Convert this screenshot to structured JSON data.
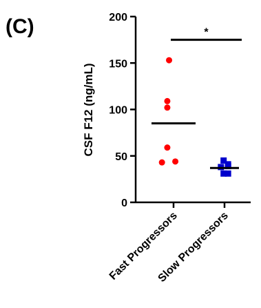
{
  "chart_data": {
    "type": "scatter",
    "panel_label": "(C)",
    "ylabel": "CSF F12 (ng/mL)",
    "ylim": [
      0,
      200
    ],
    "yticks": [
      0,
      50,
      100,
      150,
      200
    ],
    "categories": [
      "Fast Progressors",
      "Slow Progressors"
    ],
    "series": [
      {
        "category": "Fast Progressors",
        "marker": "circle",
        "color": "#ff0000",
        "points": [
          {
            "offset": -0.25,
            "y": 153
          },
          {
            "offset": -0.35,
            "y": 109
          },
          {
            "offset": -0.35,
            "y": 102
          },
          {
            "offset": -0.35,
            "y": 59
          },
          {
            "offset": -0.65,
            "y": 43
          },
          {
            "offset": 0.1,
            "y": 44
          }
        ],
        "mean": 85
      },
      {
        "category": "Slow Progressors",
        "marker": "square",
        "color": "#0000cc",
        "points": [
          {
            "offset": -0.05,
            "y": 45
          },
          {
            "offset": 0.2,
            "y": 41
          },
          {
            "offset": 0.2,
            "y": 39
          },
          {
            "offset": -0.2,
            "y": 38
          },
          {
            "offset": -0.05,
            "y": 31
          },
          {
            "offset": 0.2,
            "y": 31
          }
        ],
        "mean": 37
      }
    ],
    "annotation": {
      "text": "*",
      "from": "Fast Progressors",
      "to": "Slow Progressors",
      "y": 175
    }
  }
}
